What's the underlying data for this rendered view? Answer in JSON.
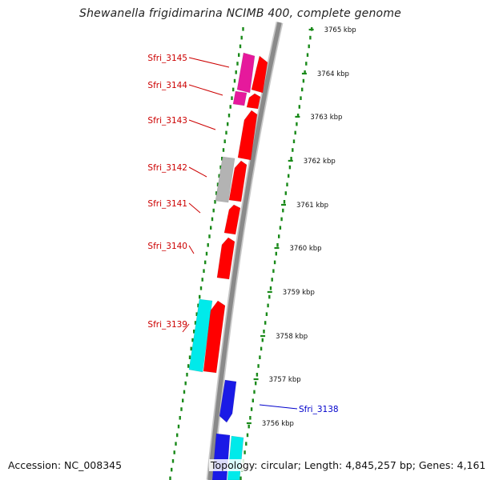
{
  "title": "Shewanella frigidimarina NCIMB 400, complete genome",
  "accession": "Accession: NC_008345",
  "footer": "Topology: circular; Length: 4,845,257 bp; Genes: 4,161",
  "colors": {
    "forward_gene": "#ff0000",
    "pink_gene": "#e6199c",
    "gray_gene": "#b3b3b3",
    "cyan_gene": "#00eaea",
    "blue_gene": "#1a1ae6",
    "label_red": "#cc0000",
    "label_blue": "#0000cc",
    "ticks": "#1a8a1a",
    "backbone": "#8a8a8a"
  },
  "scale_ticks": [
    {
      "label": "3765 kbp"
    },
    {
      "label": "3764 kbp"
    },
    {
      "label": "3763 kbp"
    },
    {
      "label": "3762 kbp"
    },
    {
      "label": "3761 kbp"
    },
    {
      "label": "3760 kbp"
    },
    {
      "label": "3759 kbp"
    },
    {
      "label": "3758 kbp"
    },
    {
      "label": "3757 kbp"
    },
    {
      "label": "3756 kbp"
    }
  ],
  "gene_labels": [
    {
      "name": "Sfri_3145"
    },
    {
      "name": "Sfri_3144"
    },
    {
      "name": "Sfri_3143"
    },
    {
      "name": "Sfri_3142"
    },
    {
      "name": "Sfri_3141"
    },
    {
      "name": "Sfri_3140"
    },
    {
      "name": "Sfri_3139"
    },
    {
      "name": "Sfri_3138"
    }
  ]
}
